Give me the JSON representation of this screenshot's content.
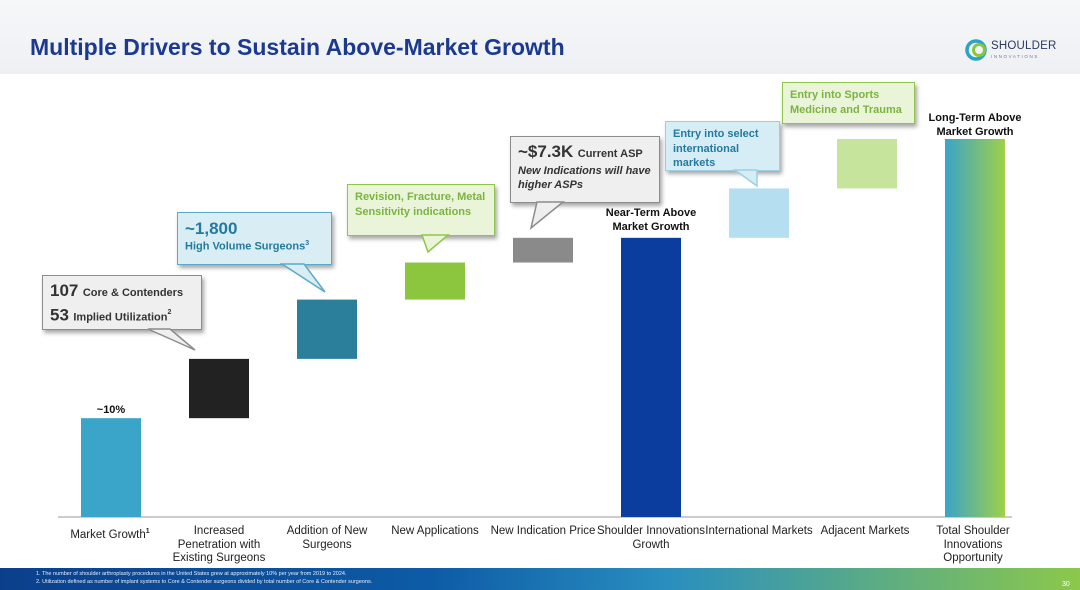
{
  "header": {
    "title": "Multiple Drivers to Sustain Above-Market Growth"
  },
  "logo": {
    "name": "SHOULDER",
    "sub": "INNOVATIONS"
  },
  "chart_data": {
    "type": "bar",
    "subtype": "waterfall",
    "categories": [
      "Market Growth",
      "Increased Penetration with Existing Surgeons",
      "Addition of New Surgeons",
      "New Applications",
      "New Indication Price",
      "Shoulder Innovations Growth",
      "International Markets",
      "Adjacent Markets",
      "Total Shoulder Innovations Opportunity"
    ],
    "category_superscripts": [
      "1",
      "",
      "",
      "",
      "",
      "",
      "",
      "",
      ""
    ],
    "ranges": [
      [
        0,
        2
      ],
      [
        2,
        3.2
      ],
      [
        3.2,
        4.4
      ],
      [
        4.4,
        5.15
      ],
      [
        5.15,
        5.65
      ],
      [
        0,
        5.65
      ],
      [
        5.65,
        6.65
      ],
      [
        6.65,
        7.65
      ],
      [
        0,
        7.65
      ]
    ],
    "colors": [
      "#3aa4c9",
      "#222222",
      "#2b7f9b",
      "#8cc63f",
      "#8a8a8a",
      "#0a3d9e",
      "#b5dff0",
      "#c6e49c",
      "gradient"
    ],
    "ylim": [
      0,
      8.5
    ],
    "annotations": {
      "market_growth": "~10%",
      "near_term": "Near-Term Above Market Growth",
      "long_term": "Long-Term Above Market Growth"
    },
    "callouts": {
      "core": {
        "num1": "107",
        "text1": "Core & Contenders",
        "num2": "53",
        "text2": "Implied Utilization",
        "sup2": "2"
      },
      "surgeons": {
        "num": "~1,800",
        "text": "High Volume Surgeons",
        "sup": "3"
      },
      "revision": {
        "text": "Revision, Fracture, Metal Sensitivity indications"
      },
      "asp": {
        "num": "~$7.3K",
        "text": "Current ASP",
        "italic": "New Indications will have higher ASPs"
      },
      "international": {
        "text": "Entry into select international markets"
      },
      "sports": {
        "text": "Entry into Sports Medicine and Trauma"
      }
    }
  },
  "footer": {
    "note1": "1. The number of shoulder arthroplasty procedures in the United States grew at approximately 10% per year from 2019 to 2024.",
    "note2": "2. Utilization defined as number of implant systems to Core & Contender surgeons divided by total number of Core & Contender surgeons.",
    "page": "30"
  },
  "colors": {
    "title": "#1b3a8f",
    "accent_blue": "#0a3d9e",
    "accent_green": "#8cc63f"
  }
}
